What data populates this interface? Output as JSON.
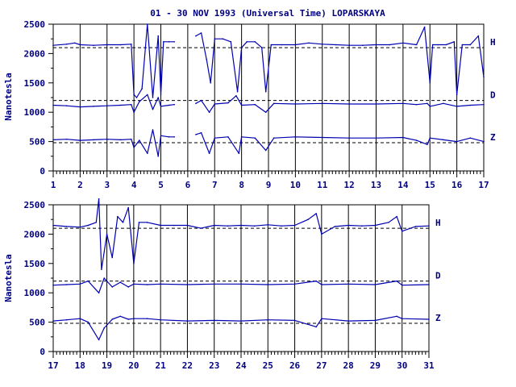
{
  "title": "01 - 30 NOV 1993 (Universal Time) LOPARSKAYA",
  "colors": {
    "ink": "#000080",
    "axis": "#000000",
    "trace": "#0000b0",
    "background": "#ffffff"
  },
  "chart_data": [
    {
      "type": "line",
      "panel": "upper",
      "xlabel": "",
      "ylabel": "Nanotesla",
      "xlim": [
        1,
        17
      ],
      "ylim": [
        0,
        2500
      ],
      "x_ticks": [
        "1",
        "2",
        "3",
        "4",
        "5",
        "6",
        "7",
        "8",
        "9",
        "10",
        "11",
        "12",
        "13",
        "14",
        "15",
        "16",
        "17"
      ],
      "y_ticks": [
        "0",
        "500",
        "1000",
        "1500",
        "2000",
        "2500"
      ],
      "grid": "vertical lines at each day",
      "baselines": [
        {
          "name": "H",
          "value": 2100
        },
        {
          "name": "D",
          "value": 1200
        },
        {
          "name": "Z",
          "value": 480
        }
      ],
      "series": [
        {
          "name": "H",
          "x": [
            1,
            1.5,
            1.8,
            2,
            2.5,
            3,
            3.5,
            3.9,
            4,
            4.1,
            4.3,
            4.5,
            4.7,
            4.9,
            5,
            5.1,
            5.3,
            5.5,
            5.7,
            6,
            6.3,
            6.5,
            6.7,
            6.85,
            7,
            7.3,
            7.6,
            7.85,
            8,
            8.2,
            8.5,
            8.75,
            8.9,
            9.1,
            9.5,
            10,
            10.5,
            11,
            11.5,
            12,
            12.5,
            13,
            13.5,
            14,
            14.5,
            14.8,
            15,
            15.1,
            15.3,
            15.6,
            15.9,
            16,
            16.2,
            16.5,
            16.8,
            17
          ],
          "y": [
            2140,
            2160,
            2180,
            2150,
            2140,
            2150,
            2150,
            2160,
            1300,
            1250,
            1400,
            2500,
            1250,
            2300,
            1300,
            2200,
            2200,
            2200,
            null,
            null,
            2300,
            2350,
            1900,
            1500,
            2250,
            2250,
            2200,
            1350,
            2100,
            2200,
            2200,
            2100,
            1350,
            2150,
            2150,
            2150,
            2180,
            2160,
            2150,
            2140,
            2140,
            2150,
            2150,
            2180,
            2150,
            2450,
            1500,
            2150,
            2150,
            2150,
            2200,
            1300,
            2150,
            2150,
            2300,
            1600
          ]
        },
        {
          "name": "D",
          "x": [
            1,
            1.5,
            2,
            2.5,
            3,
            3.5,
            3.9,
            4,
            4.2,
            4.5,
            4.7,
            4.9,
            5,
            5.3,
            5.5,
            5.7,
            6,
            6.3,
            6.5,
            6.8,
            7,
            7.5,
            7.8,
            8,
            8.5,
            8.9,
            9.2,
            10,
            11,
            12,
            13,
            14,
            14.5,
            14.9,
            15,
            15.5,
            16,
            16.5,
            17
          ],
          "y": [
            1120,
            1110,
            1090,
            1100,
            1110,
            1120,
            1130,
            1000,
            1180,
            1300,
            1050,
            1250,
            1100,
            1120,
            1130,
            null,
            null,
            1150,
            1200,
            1000,
            1140,
            1160,
            1280,
            1120,
            1130,
            1000,
            1150,
            1140,
            1150,
            1140,
            1140,
            1150,
            1130,
            1150,
            1100,
            1150,
            1100,
            1120,
            1130
          ]
        },
        {
          "name": "Z",
          "x": [
            1,
            1.5,
            2,
            2.5,
            3,
            3.5,
            3.9,
            4,
            4.2,
            4.5,
            4.7,
            4.9,
            5,
            5.3,
            5.5,
            5.7,
            6,
            6.3,
            6.5,
            6.8,
            7,
            7.5,
            7.9,
            8,
            8.5,
            8.9,
            9.2,
            10,
            11,
            12,
            13,
            14,
            14.5,
            14.9,
            15,
            15.5,
            16,
            16.5,
            17
          ],
          "y": [
            530,
            540,
            520,
            530,
            540,
            530,
            540,
            400,
            520,
            300,
            700,
            250,
            600,
            580,
            580,
            null,
            null,
            620,
            650,
            300,
            560,
            580,
            300,
            580,
            560,
            350,
            560,
            580,
            570,
            560,
            560,
            570,
            520,
            450,
            560,
            530,
            500,
            560,
            500
          ]
        }
      ]
    },
    {
      "type": "line",
      "panel": "lower",
      "xlabel": "",
      "ylabel": "Nanotesla",
      "xlim": [
        17,
        31
      ],
      "ylim": [
        0,
        2500
      ],
      "x_ticks": [
        "17",
        "18",
        "19",
        "20",
        "21",
        "22",
        "23",
        "24",
        "25",
        "26",
        "27",
        "28",
        "29",
        "30",
        "31"
      ],
      "y_ticks": [
        "0",
        "500",
        "1000",
        "1500",
        "2000",
        "2500"
      ],
      "grid": "vertical lines at each day",
      "baselines": [
        {
          "name": "H",
          "value": 2100
        },
        {
          "name": "D",
          "value": 1200
        },
        {
          "name": "Z",
          "value": 480
        }
      ],
      "series": [
        {
          "name": "H",
          "x": [
            17,
            17.5,
            18,
            18.3,
            18.6,
            18.7,
            18.8,
            19,
            19.2,
            19.4,
            19.6,
            19.8,
            20,
            20.2,
            20.5,
            21,
            21.5,
            22,
            22.5,
            23,
            23.5,
            24,
            24.5,
            25,
            25.5,
            26,
            26.5,
            26.8,
            27,
            27.5,
            28,
            28.5,
            29,
            29.5,
            29.8,
            30,
            30.5,
            31
          ],
          "y": [
            2150,
            2130,
            2120,
            2150,
            2200,
            2600,
            1400,
            2000,
            1600,
            2300,
            2200,
            2450,
            1500,
            2200,
            2200,
            2150,
            2150,
            2150,
            2100,
            2150,
            2140,
            2150,
            2140,
            2160,
            2140,
            2150,
            2250,
            2350,
            2000,
            2130,
            2150,
            2140,
            2150,
            2200,
            2300,
            2050,
            2130,
            2140
          ]
        },
        {
          "name": "D",
          "x": [
            17,
            17.5,
            18,
            18.3,
            18.7,
            18.9,
            19.2,
            19.5,
            19.8,
            20,
            20.5,
            21,
            22,
            23,
            24,
            25,
            26,
            26.8,
            27,
            28,
            29,
            29.8,
            30,
            31
          ],
          "y": [
            1130,
            1140,
            1150,
            1200,
            1000,
            1250,
            1100,
            1180,
            1100,
            1150,
            1140,
            1150,
            1140,
            1150,
            1150,
            1140,
            1150,
            1200,
            1140,
            1150,
            1140,
            1200,
            1130,
            1140
          ]
        },
        {
          "name": "Z",
          "x": [
            17,
            17.5,
            18,
            18.3,
            18.7,
            18.9,
            19.2,
            19.5,
            19.8,
            20,
            20.5,
            21,
            22,
            23,
            24,
            25,
            26,
            26.8,
            27,
            28,
            29,
            29.8,
            30,
            31
          ],
          "y": [
            520,
            540,
            560,
            500,
            200,
            400,
            550,
            600,
            550,
            560,
            560,
            540,
            520,
            530,
            520,
            540,
            530,
            420,
            560,
            520,
            530,
            600,
            560,
            550
          ]
        }
      ]
    }
  ]
}
